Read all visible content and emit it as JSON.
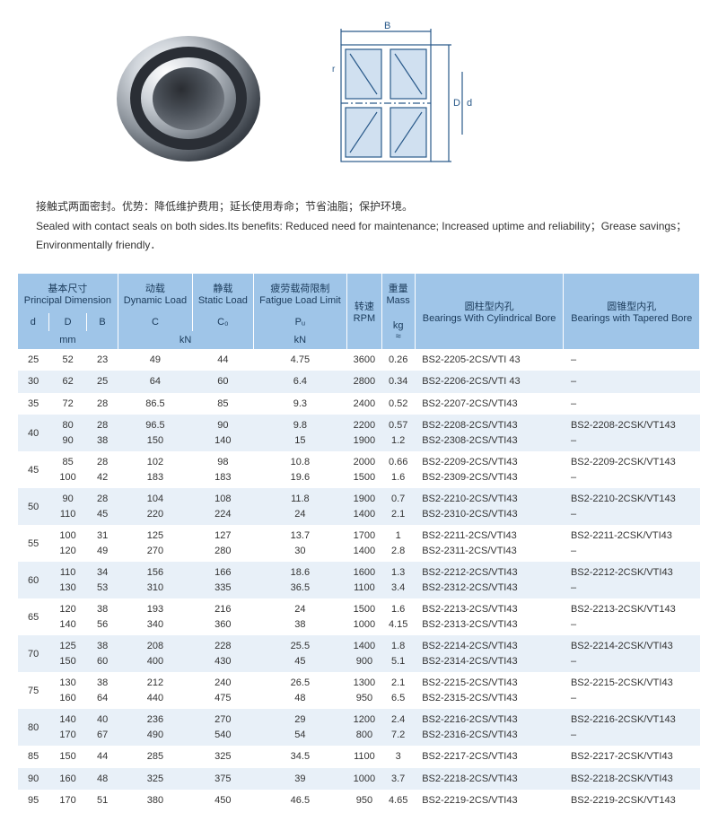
{
  "description": {
    "cn": "接触式两面密封。优势：降低维护费用；延长使用寿命；节省油脂；保护环境。",
    "en": "Sealed with contact seals on both sides.Its benefits: Reduced need for maintenance; Increased uptime and reliability；Grease savings；Environmentally friendly．"
  },
  "headers": {
    "principal_cn": "基本尺寸",
    "principal_en": "Principal Dimension",
    "dynamic_cn": "动载",
    "dynamic_en": "Dynamic Load",
    "static_cn": "静载",
    "static_en": "Static Load",
    "fatigue_cn": "疲劳载荷限制",
    "fatigue_en": "Fatigue Load Limit",
    "rpm_cn": "转速",
    "rpm_en": "RPM",
    "mass_cn": "重量",
    "mass_en": "Mass",
    "cyl_cn": "圆柱型内孔",
    "cyl_en": "Bearings With Cylindrical Bore",
    "tap_cn": "圆锥型内孔",
    "tap_en": "Bearings with Tapered Bore",
    "d": "d",
    "D": "D",
    "B": "B",
    "C": "C",
    "C0": "C₀",
    "Pu": "Pᵤ",
    "kg": "kg",
    "kg2": "≈",
    "mm": "mm",
    "kN": "kN",
    "kN2": "kN"
  },
  "rows": [
    {
      "d": "25",
      "D": "52",
      "B": "23",
      "C": "49",
      "C0": "44",
      "Pu": "4.75",
      "rpm": "3600",
      "kg": "0.26",
      "cyl": "BS2-2205-2CS/VTI 43",
      "tap": "–"
    },
    {
      "d": "30",
      "D": "62",
      "B": "25",
      "C": "64",
      "C0": "60",
      "Pu": "6.4",
      "rpm": "2800",
      "kg": "0.34",
      "cyl": "BS2-2206-2CS/VTI 43",
      "tap": "–"
    },
    {
      "d": "35",
      "D": "72",
      "B": "28",
      "C": "86.5",
      "C0": "85",
      "Pu": "9.3",
      "rpm": "2400",
      "kg": "0.52",
      "cyl": "BS2-2207-2CS/VTI43",
      "tap": "–"
    },
    {
      "d": "40",
      "D": "80\n90",
      "B": "28\n38",
      "C": "96.5\n150",
      "C0": "90\n140",
      "Pu": "9.8\n15",
      "rpm": "2200\n1900",
      "kg": "0.57\n1.2",
      "cyl": "BS2-2208-2CS/VTI43\nBS2-2308-2CS/VTI43",
      "tap": "BS2-2208-2CSK/VT143\n–"
    },
    {
      "d": "45",
      "D": "85\n100",
      "B": "28\n42",
      "C": "102\n183",
      "C0": "98\n183",
      "Pu": "10.8\n19.6",
      "rpm": "2000\n1500",
      "kg": "0.66\n1.6",
      "cyl": "BS2-2209-2CS/VTI43\nBS2-2309-2CS/VTI43",
      "tap": "BS2-2209-2CSK/VT143\n–"
    },
    {
      "d": "50",
      "D": "90\n110",
      "B": "28\n45",
      "C": "104\n220",
      "C0": "108\n224",
      "Pu": "11.8\n24",
      "rpm": "1900\n1400",
      "kg": "0.7\n2.1",
      "cyl": "BS2-2210-2CS/VTI43\nBS2-2310-2CS/VTI43",
      "tap": "BS2-2210-2CSK/VT143\n–"
    },
    {
      "d": "55",
      "D": "100\n120",
      "B": "31\n49",
      "C": "125\n270",
      "C0": "127\n280",
      "Pu": "13.7\n30",
      "rpm": "1700\n1400",
      "kg": "1\n2.8",
      "cyl": "BS2-2211-2CS/VTI43\nBS2-2311-2CS/VTI43",
      "tap": "BS2-2211-2CSK/VTI43\n–"
    },
    {
      "d": "60",
      "D": "110\n130",
      "B": "34\n53",
      "C": "156\n310",
      "C0": "166\n335",
      "Pu": "18.6\n36.5",
      "rpm": "1600\n1100",
      "kg": "1.3\n3.4",
      "cyl": "BS2-2212-2CS/VTI43\nBS2-2312-2CS/VTI43",
      "tap": "BS2-2212-2CSK/VTI43\n–"
    },
    {
      "d": "65",
      "D": "120\n140",
      "B": "38\n56",
      "C": "193\n340",
      "C0": "216\n360",
      "Pu": "24\n38",
      "rpm": "1500\n1000",
      "kg": "1.6\n4.15",
      "cyl": "BS2-2213-2CS/VTI43\nBS2-2313-2CS/VTI43",
      "tap": "BS2-2213-2CSK/VT143\n–"
    },
    {
      "d": "70",
      "D": "125\n150",
      "B": "38\n60",
      "C": "208\n400",
      "C0": "228\n430",
      "Pu": "25.5\n45",
      "rpm": "1400\n900",
      "kg": "1.8\n5.1",
      "cyl": "BS2-2214-2CS/VTI43\nBS2-2314-2CS/VTI43",
      "tap": "BS2-2214-2CSK/VTI43\n–"
    },
    {
      "d": "75",
      "D": "130\n160",
      "B": "38\n64",
      "C": "212\n440",
      "C0": "240\n475",
      "Pu": "26.5\n48",
      "rpm": "1300\n950",
      "kg": "2.1\n6.5",
      "cyl": "BS2-2215-2CS/VTI43\nBS2-2315-2CS/VTI43",
      "tap": "BS2-2215-2CSK/VTI43\n–"
    },
    {
      "d": "80",
      "D": "140\n170",
      "B": "40\n67",
      "C": "236\n490",
      "C0": "270\n540",
      "Pu": "29\n54",
      "rpm": "1200\n800",
      "kg": "2.4\n7.2",
      "cyl": "BS2-2216-2CS/VTI43\nBS2-2316-2CS/VTI43",
      "tap": "BS2-2216-2CSK/VT143\n–"
    },
    {
      "d": "85",
      "D": "150",
      "B": "44",
      "C": "285",
      "C0": "325",
      "Pu": "34.5",
      "rpm": "1100",
      "kg": "3",
      "cyl": "BS2-2217-2CS/VTI43",
      "tap": "BS2-2217-2CSK/VTI43"
    },
    {
      "d": "90",
      "D": "160",
      "B": "48",
      "C": "325",
      "C0": "375",
      "Pu": "39",
      "rpm": "1000",
      "kg": "3.7",
      "cyl": "BS2-2218-2CS/VTI43",
      "tap": "BS2-2218-2CSK/VTI43"
    },
    {
      "d": "95",
      "D": "170",
      "B": "51",
      "C": "380",
      "C0": "450",
      "Pu": "46.5",
      "rpm": "950",
      "kg": "4.65",
      "cyl": "BS2-2219-2CS/VTI43",
      "tap": "BS2-2219-2CSK/VT143"
    }
  ],
  "colors": {
    "header_bg": "#9fc5e8",
    "header_text": "#1a3a5a",
    "row_odd": "#ffffff",
    "row_even": "#e8f0f8",
    "diagram_stroke": "#2a5a8a"
  },
  "diagram": {
    "label_B": "B",
    "label_D": "D",
    "label_d": "d",
    "label_r": "r"
  }
}
